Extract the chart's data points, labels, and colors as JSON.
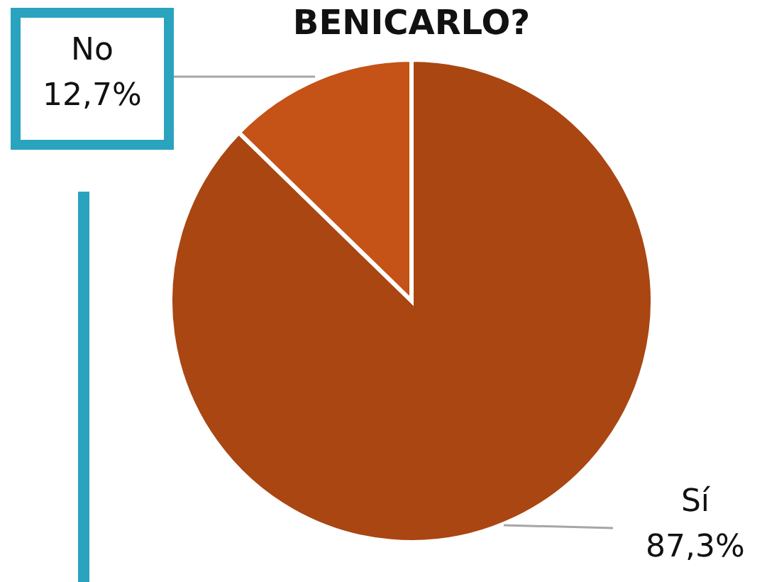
{
  "chart_data": {
    "type": "pie",
    "title": "BENICARLO?",
    "categories": [
      "Sí",
      "No"
    ],
    "values": [
      87.3,
      12.7
    ],
    "colors": [
      "#a94612",
      "#c55216"
    ],
    "value_labels": [
      "87,3%",
      "12,7%"
    ]
  }
}
